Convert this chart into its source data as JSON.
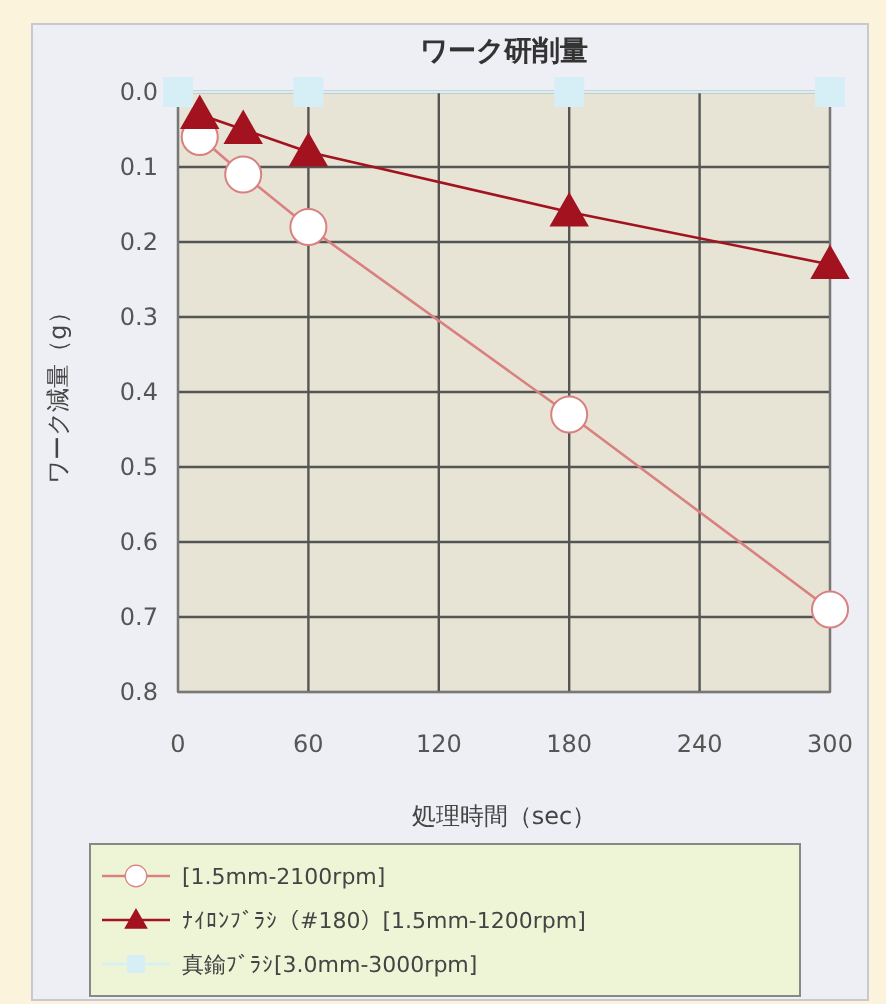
{
  "chart_data": {
    "type": "line",
    "title": "ワーク研削量",
    "xlabel": "処理時間（sec）",
    "ylabel": "ワーク減量（g）",
    "xlim": [
      0,
      300
    ],
    "xticks": [
      0,
      60,
      120,
      180,
      240,
      300
    ],
    "ylim": [
      0.8,
      0.0
    ],
    "yticks": [
      {
        "value": 0,
        "label": "0.0"
      },
      0.1,
      0.2,
      0.3,
      0.4,
      0.5,
      0.6,
      0.7,
      0.8
    ],
    "grid": true,
    "legend": "bottom",
    "series": [
      {
        "name": "[1.5mm-2100rpm]",
        "color": "#d98080",
        "marker": "circle",
        "x": [
          10,
          30,
          60,
          180,
          300
        ],
        "values": [
          0.06,
          0.11,
          0.18,
          0.43,
          0.69
        ]
      },
      {
        "name": "ﾅｲﾛﾝﾌﾞﾗｼ（#180）[1.5mm-1200rpm]",
        "color": "#a3121f",
        "marker": "triangle",
        "x": [
          10,
          30,
          60,
          180,
          300
        ],
        "values": [
          0.03,
          0.05,
          0.08,
          0.16,
          0.23
        ]
      },
      {
        "name": "真鍮ﾌﾞﾗｼ[3.0mm-3000rpm]",
        "color": "#d6eef5",
        "marker": "square",
        "x": [
          0,
          60,
          180,
          300
        ],
        "values": [
          0.0,
          0.0,
          0.0,
          0.0
        ]
      }
    ]
  }
}
